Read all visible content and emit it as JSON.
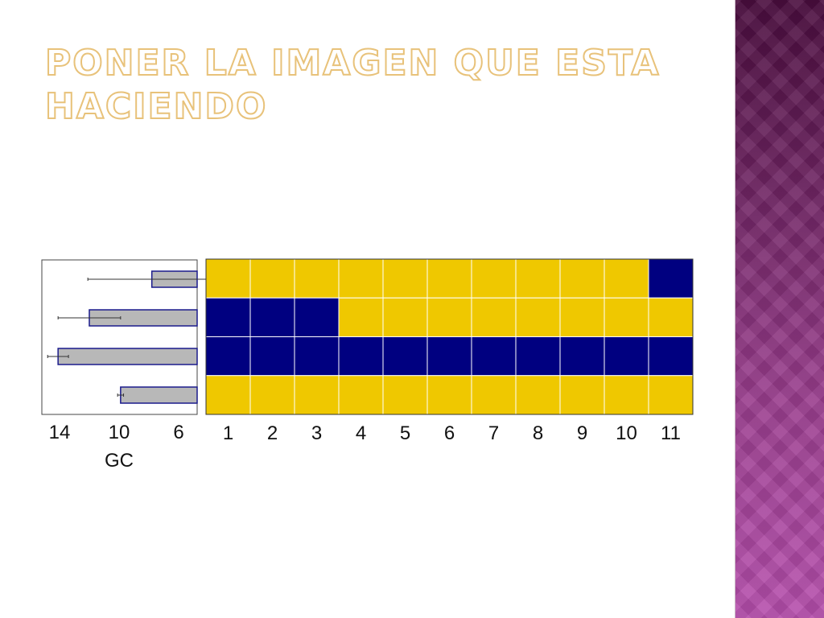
{
  "slide": {
    "title": "Poner la imagen que esta haciendo"
  },
  "colors": {
    "yellow": "#efc800",
    "blue": "#000080",
    "bar_fill": "#b8b8b8",
    "bar_border": "#1a1a8c",
    "title_outline": "#e8c27a",
    "panel_top": "#4a0d3e",
    "panel_bottom": "#b64fad"
  },
  "chart_data": [
    {
      "type": "bar",
      "orientation": "horizontal",
      "xlabel": "GC",
      "xlim": [
        15,
        5
      ],
      "x_reversed": true,
      "ticks": [
        14,
        10,
        6
      ],
      "tick_labels": [
        "14",
        "10",
        "6"
      ],
      "values": [
        7.8,
        12.0,
        14.1,
        9.9
      ],
      "error": [
        4.3,
        2.1,
        0.7,
        0.2
      ]
    },
    {
      "type": "heatmap",
      "x_labels": [
        "1",
        "2",
        "3",
        "4",
        "5",
        "6",
        "7",
        "8",
        "9",
        "10",
        "11"
      ],
      "rows": [
        [
          "yellow",
          "yellow",
          "yellow",
          "yellow",
          "yellow",
          "yellow",
          "yellow",
          "yellow",
          "yellow",
          "yellow",
          "blue"
        ],
        [
          "blue",
          "blue",
          "blue",
          "yellow",
          "yellow",
          "yellow",
          "yellow",
          "yellow",
          "yellow",
          "yellow",
          "yellow"
        ],
        [
          "blue",
          "blue",
          "blue",
          "blue",
          "blue",
          "blue",
          "blue",
          "blue",
          "blue",
          "blue",
          "blue"
        ],
        [
          "yellow",
          "yellow",
          "yellow",
          "yellow",
          "yellow",
          "yellow",
          "yellow",
          "yellow",
          "yellow",
          "yellow",
          "yellow"
        ]
      ]
    }
  ]
}
